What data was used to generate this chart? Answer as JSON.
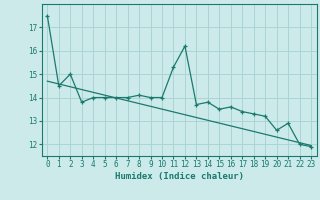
{
  "xlabel": "Humidex (Indice chaleur)",
  "background_color": "#cceaea",
  "grid_color": "#aad4d4",
  "line_color": "#1a7a6e",
  "x_values": [
    0,
    1,
    2,
    3,
    4,
    5,
    6,
    7,
    8,
    9,
    10,
    11,
    12,
    13,
    14,
    15,
    16,
    17,
    18,
    19,
    20,
    21,
    22,
    23
  ],
  "y_values": [
    17.5,
    14.5,
    15.0,
    13.8,
    14.0,
    14.0,
    14.0,
    14.0,
    14.1,
    14.0,
    14.0,
    15.3,
    16.2,
    13.7,
    13.8,
    13.5,
    13.6,
    13.4,
    13.3,
    13.2,
    12.6,
    12.9,
    12.0,
    11.9
  ],
  "trend_x": [
    0,
    23
  ],
  "trend_y": [
    14.7,
    11.95
  ],
  "ylim": [
    11.5,
    18.0
  ],
  "xlim": [
    -0.5,
    23.5
  ],
  "yticks": [
    12,
    13,
    14,
    15,
    16,
    17
  ],
  "xticks": [
    0,
    1,
    2,
    3,
    4,
    5,
    6,
    7,
    8,
    9,
    10,
    11,
    12,
    13,
    14,
    15,
    16,
    17,
    18,
    19,
    20,
    21,
    22,
    23
  ],
  "tick_fontsize": 5.5,
  "xlabel_fontsize": 6.5
}
